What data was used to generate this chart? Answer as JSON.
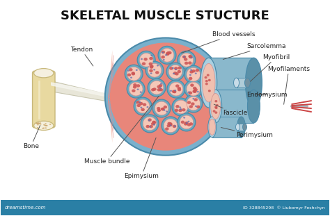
{
  "title": "SKELETAL MUSCLE STUCTURE",
  "title_fontsize": 13,
  "title_fontweight": "bold",
  "bg_color": "#ffffff",
  "footer_color": "#2a7fa5",
  "footer_text_left": "dreamstime.com",
  "footer_text_right": "ID 328845298  © Liubomyr Feshchyn",
  "bone_color": "#e8d9a0",
  "bone_inner": "#f5f0dc",
  "bone_outline": "#c8b87a",
  "bone_dot": "#c8a060",
  "tendon_color": "#dddbc8",
  "tendon_edge": "#b0b090",
  "muscle_outer_color": "#e8867a",
  "muscle_mid_color": "#f0a898",
  "muscle_inner_color": "#f8ccc0",
  "epimysium_color": "#7ab0cc",
  "epimysium_dark": "#4a8aaa",
  "fascicle_bg": "#8ec4d8",
  "fascicle_border": "#4a8aaa",
  "perimysium_color": "#6aaac0",
  "myofiber_bg": "#f5c8b8",
  "myofiber_border": "#d09090",
  "myofiber_dots_red": "#cc5555",
  "myofiber_dots_blue": "#6070b0",
  "cylinder_body": "#8ab8cc",
  "cylinder_cap_left": "#aad0e0",
  "cylinder_cap_right": "#5a90a8",
  "cylinder_inner_pink": "#f0c0b0",
  "myofilament_color": "#cc4444",
  "myofilament_dark": "#884444",
  "label_color": "#222222",
  "line_color": "#555555"
}
